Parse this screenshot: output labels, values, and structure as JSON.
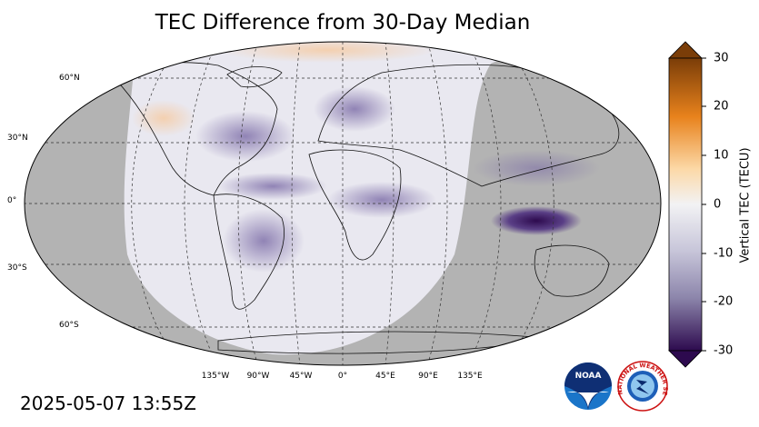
{
  "title": "TEC Difference from 30-Day Median",
  "timestamp": "2025-05-07 13:55Z",
  "colorbar": {
    "label": "Vertical TEC (TECU)",
    "ticks": [
      "30",
      "20",
      "10",
      "0",
      "-10",
      "-20",
      "-30"
    ],
    "range": [
      -30,
      30
    ],
    "colors": {
      "max": "#7a3d08",
      "orange": "#e8821c",
      "zero": "#f2f2f4",
      "mid_neg": "#8c85ab",
      "min": "#2d0a4e"
    }
  },
  "map": {
    "lat_labels": [
      "60°N",
      "30°N",
      "0°",
      "30°S",
      "60°S"
    ],
    "lon_labels": [
      "135°W",
      "90°W",
      "45°W",
      "0°",
      "45°E",
      "90°E",
      "135°E"
    ],
    "night_shade": "#aeaeae"
  },
  "logos": {
    "noaa": "NOAA",
    "nws": "NATIONAL WEATHER SERVICE"
  }
}
